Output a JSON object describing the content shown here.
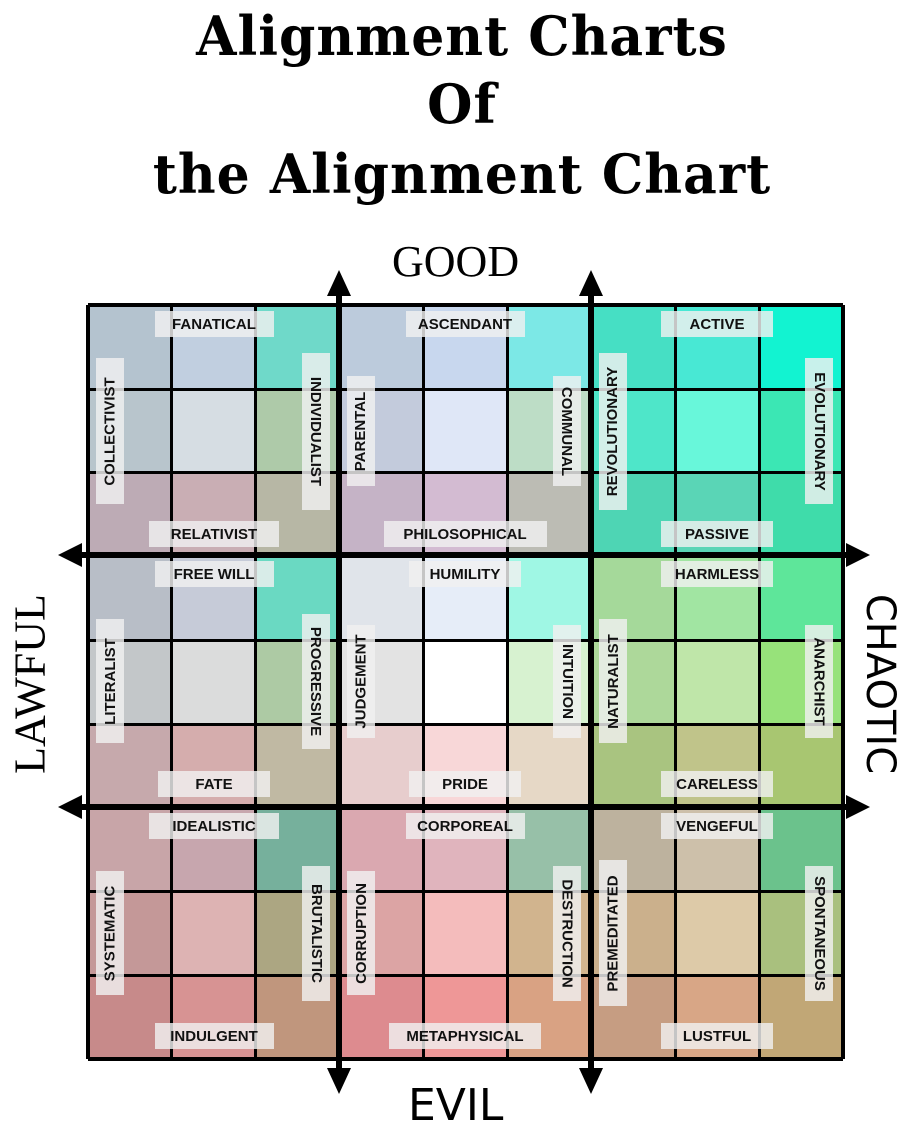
{
  "title": {
    "line1": "Alignment Charts",
    "line2": "Of",
    "line3": "the Alignment Chart"
  },
  "axes": {
    "top": "GOOD",
    "bottom": "EVIL",
    "left": "LAWFUL",
    "right": "CHAOTIC"
  },
  "colors": {
    "rows": [
      [
        "#b4c3cf",
        "#c1cfe0",
        "#6fd9c9",
        "#bccbdc",
        "#c8d7ee",
        "#7ce8e6",
        "#46dfc4",
        "#48e8d4",
        "#12f3d1"
      ],
      [
        "#b8c5cc",
        "#d6dde3",
        "#aecaa9",
        "#c3cbdc",
        "#dfe7f7",
        "#bdddc6",
        "#4ee6c9",
        "#68f7da",
        "#3be7b4"
      ],
      [
        "#bdabb5",
        "#c9aeb4",
        "#b7b7a5",
        "#c5b3c6",
        "#d3bbd2",
        "#bcbcb4",
        "#4ed5b4",
        "#5ad5b6",
        "#3fdcaa"
      ],
      [
        "#b8bec7",
        "#c6cbd8",
        "#6ad9c2",
        "#e0e4ea",
        "#e6edf8",
        "#9ff7e4",
        "#a5d99a",
        "#a1e5a2",
        "#5ee69a"
      ],
      [
        "#c3c7c9",
        "#dbdcdc",
        "#adcaa4",
        "#e3e3e3",
        "#ffffff",
        "#d7f2d0",
        "#add89a",
        "#bfe6a9",
        "#97e27a"
      ],
      [
        "#c6a9ac",
        "#d5adad",
        "#c0b9a3",
        "#e7cdcd",
        "#f8d7d8",
        "#e6d8c6",
        "#a9c480",
        "#c0c48a",
        "#a8c671"
      ],
      [
        "#c8a5a8",
        "#c7a6ae",
        "#76b09c",
        "#daa8b0",
        "#e0b4bd",
        "#97c0a8",
        "#bdb29e",
        "#cdc0aa",
        "#6bc28c"
      ],
      [
        "#c49898",
        "#ddb3b3",
        "#aca682",
        "#dca4a4",
        "#f4bcbc",
        "#d1b48e",
        "#cbb08c",
        "#ddcaa8",
        "#a9c07e"
      ],
      [
        "#c78a8a",
        "#d79393",
        "#c0967d",
        "#dd8b8f",
        "#ee9797",
        "#d9a283",
        "#c69d82",
        "#d8a686",
        "#c1a776"
      ]
    ]
  },
  "blocks": [
    {
      "top": "FANATICAL",
      "left": "COLLECTIVIST",
      "right": "INDIVIDUALIST",
      "bottom": "RELATIVIST"
    },
    {
      "top": "ASCENDANT",
      "left": "PARENTAL",
      "right": "COMMUNAL",
      "bottom": "PHILOSOPHICAL"
    },
    {
      "top": "ACTIVE",
      "left": "REVOLUTIONARY",
      "right": "EVOLUTIONARY",
      "bottom": "PASSIVE"
    },
    {
      "top": "FREE WILL",
      "left": "LITERALIST",
      "right": "PROGRESSIVE",
      "bottom": "FATE"
    },
    {
      "top": "HUMILITY",
      "left": "JUDGEMENT",
      "right": "INTUITION",
      "bottom": "PRIDE"
    },
    {
      "top": "HARMLESS",
      "left": "NATURALIST",
      "right": "ANARCHIST",
      "bottom": "CARELESS"
    },
    {
      "top": "IDEALISTIC",
      "left": "SYSTEMATIC",
      "right": "BRUTALISTIC",
      "bottom": "INDULGENT"
    },
    {
      "top": "CORPOREAL",
      "left": "CORRUPTION",
      "right": "DESTRUCTION",
      "bottom": "METAPHYSICAL"
    },
    {
      "top": "VENGEFUL",
      "left": "PREMEDITATED",
      "right": "SPONTANEOUS",
      "bottom": "LUSTFUL"
    }
  ]
}
